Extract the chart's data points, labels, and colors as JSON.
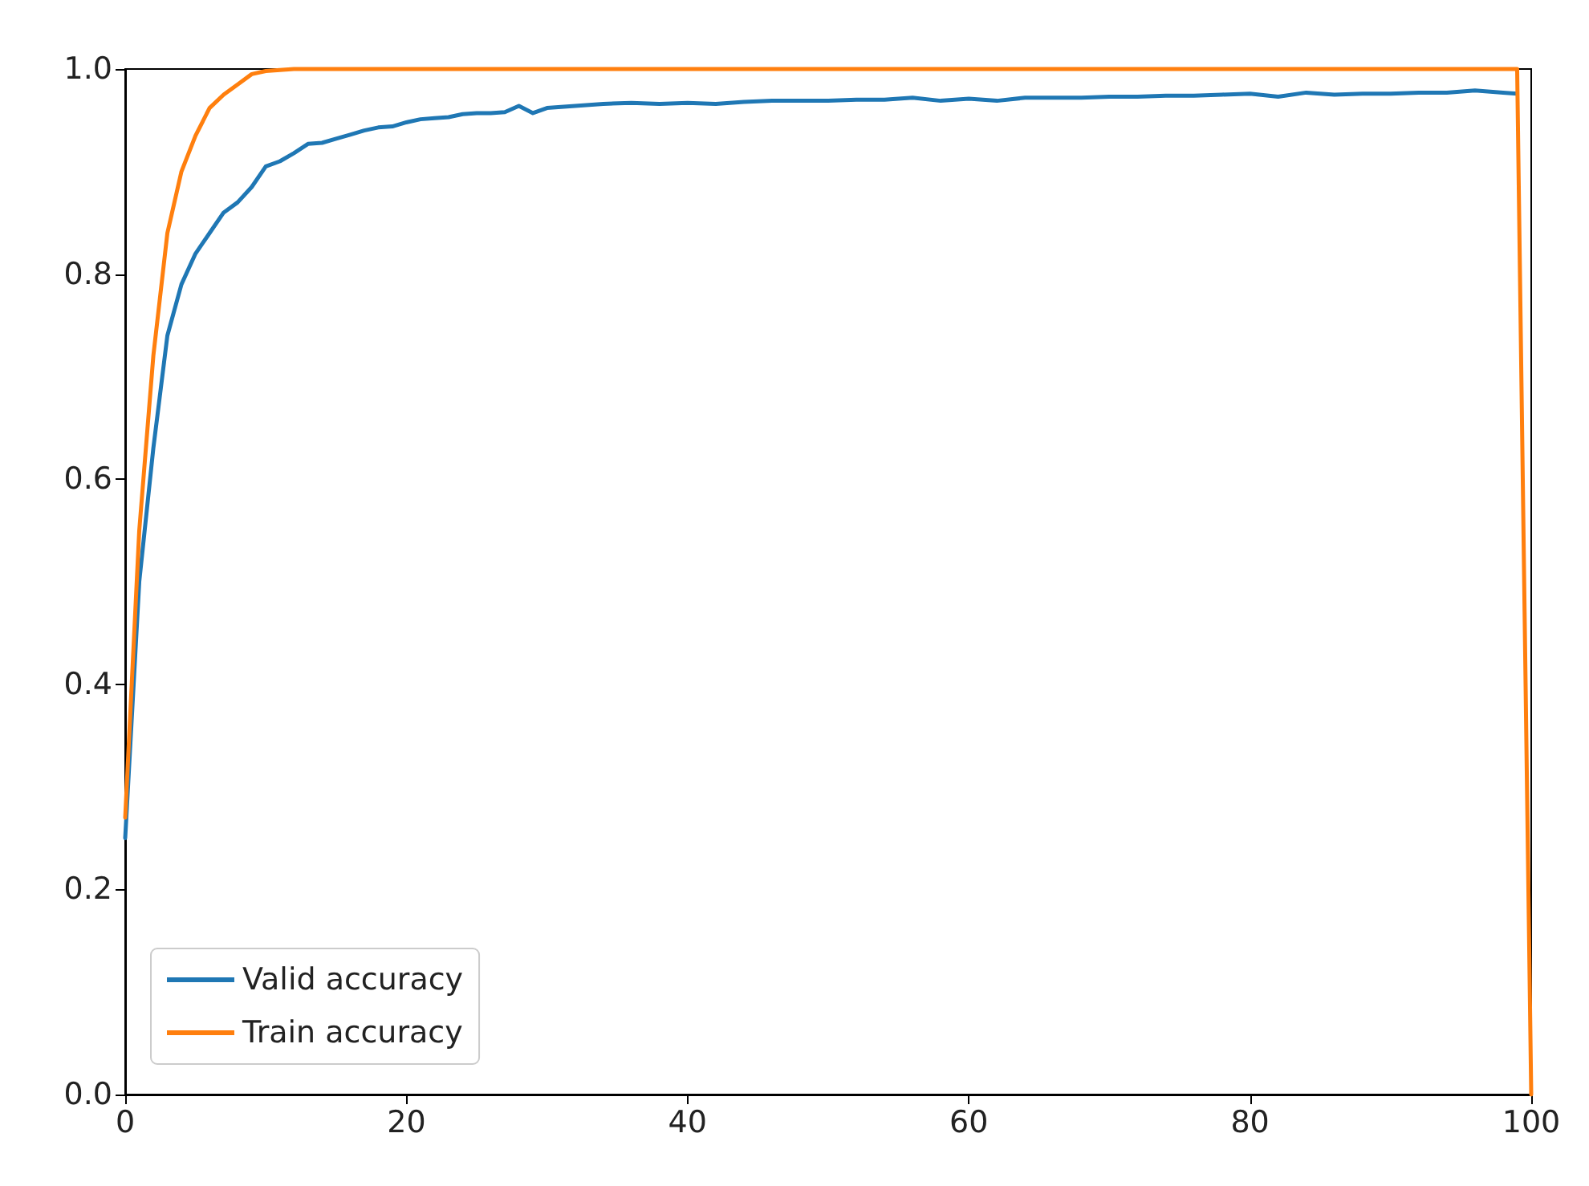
{
  "chart_data": {
    "type": "line",
    "xlim": [
      0,
      100
    ],
    "ylim": [
      0,
      1
    ],
    "xticks": [
      0,
      20,
      40,
      60,
      80,
      100
    ],
    "yticks": [
      {
        "value": 0,
        "label": "0.0"
      },
      0.2,
      0.4,
      0.6,
      0.8,
      {
        "value": 1,
        "label": "1.0"
      }
    ],
    "grid": false,
    "legend": "bottom left",
    "marker": "none",
    "line_style": "solid",
    "series": [
      {
        "name": "Valid accuracy",
        "color": "#1f77b4",
        "x": [
          0,
          1,
          2,
          3,
          4,
          5,
          6,
          7,
          8,
          9,
          10,
          11,
          12,
          13,
          14,
          15,
          16,
          17,
          18,
          19,
          20,
          21,
          22,
          23,
          24,
          25,
          26,
          27,
          28,
          29,
          30,
          32,
          34,
          36,
          38,
          40,
          42,
          44,
          46,
          48,
          50,
          52,
          54,
          56,
          58,
          60,
          62,
          64,
          66,
          68,
          70,
          72,
          74,
          76,
          78,
          80,
          82,
          84,
          86,
          88,
          90,
          92,
          94,
          96,
          98,
          99
        ],
        "values": [
          0.25,
          0.5,
          0.63,
          0.74,
          0.79,
          0.82,
          0.84,
          0.86,
          0.87,
          0.885,
          0.905,
          0.91,
          0.918,
          0.927,
          0.928,
          0.932,
          0.936,
          0.94,
          0.943,
          0.944,
          0.948,
          0.951,
          0.952,
          0.953,
          0.956,
          0.957,
          0.957,
          0.958,
          0.964,
          0.957,
          0.962,
          0.964,
          0.966,
          0.967,
          0.966,
          0.967,
          0.966,
          0.968,
          0.969,
          0.969,
          0.969,
          0.97,
          0.97,
          0.972,
          0.969,
          0.971,
          0.969,
          0.972,
          0.972,
          0.972,
          0.973,
          0.973,
          0.974,
          0.974,
          0.975,
          0.976,
          0.973,
          0.977,
          0.975,
          0.976,
          0.976,
          0.977,
          0.977,
          0.979,
          0.977,
          0.976
        ]
      },
      {
        "name": "Train accuracy",
        "color": "#ff7f0e",
        "x": [
          0,
          1,
          2,
          3,
          4,
          5,
          6,
          7,
          8,
          9,
          10,
          11,
          12,
          99,
          100
        ],
        "values": [
          0.27,
          0.55,
          0.72,
          0.84,
          0.9,
          0.935,
          0.962,
          0.975,
          0.985,
          0.995,
          0.998,
          0.999,
          1,
          1,
          0
        ]
      }
    ]
  }
}
